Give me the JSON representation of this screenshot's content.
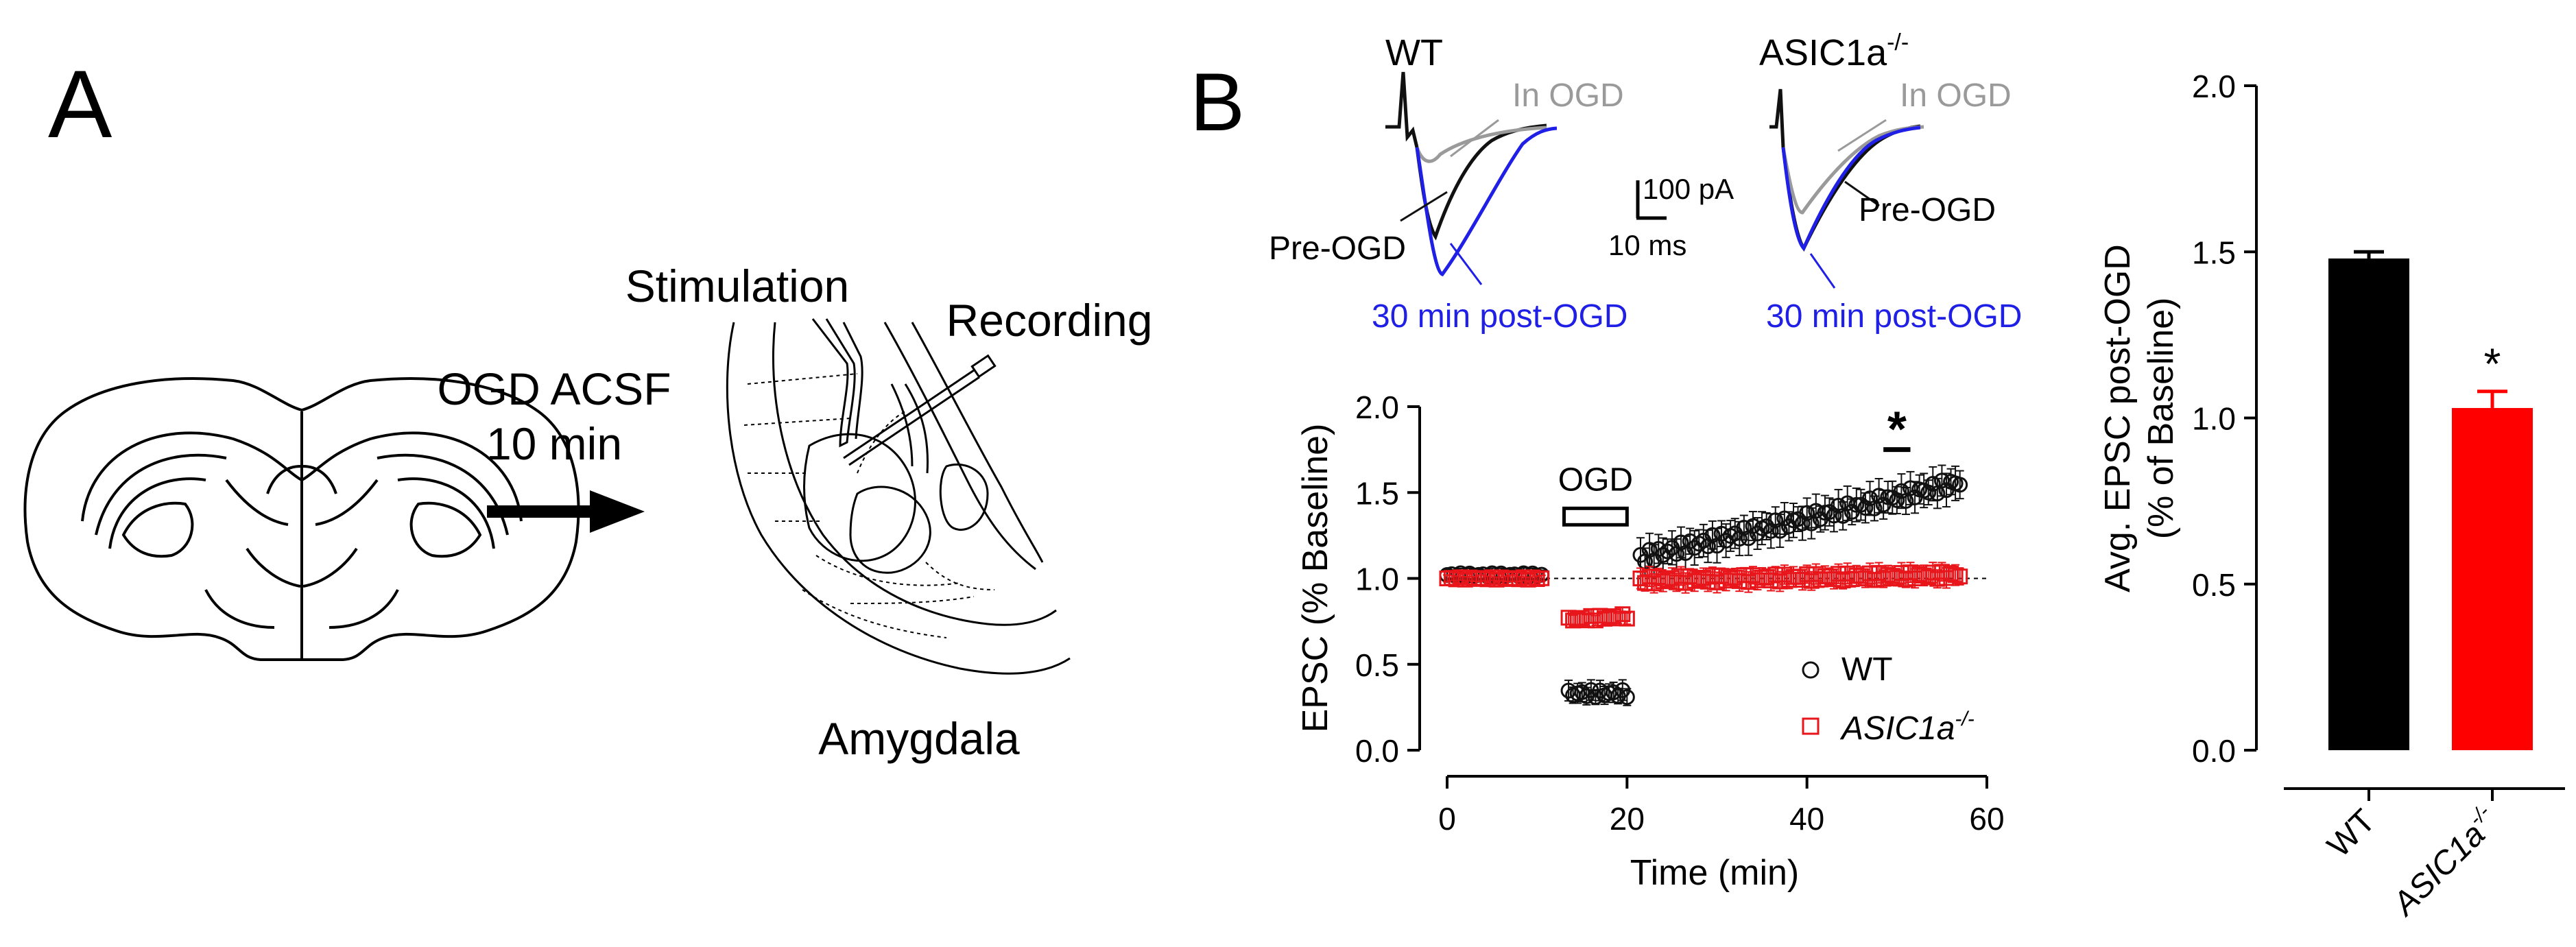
{
  "panel_a": {
    "label": "A",
    "arrow_label_line1": "OGD ACSF",
    "arrow_label_line2": "10 min",
    "stimulation_label": "Stimulation",
    "recording_label": "Recording",
    "region_label": "Amygdala"
  },
  "panel_b": {
    "label": "B",
    "traces": {
      "wt_title": "WT",
      "ko_title": "ASIC1a",
      "ko_title_sup": "-/-",
      "in_ogd_label": "In OGD",
      "pre_ogd_label": "Pre-OGD",
      "post_ogd_label": "30 min post-OGD",
      "scale_current": "100 pA",
      "scale_time": "10 ms",
      "colors": {
        "pre": "#111111",
        "in": "#9a9a9a",
        "post": "#1f1fe6"
      }
    },
    "timecourse": {
      "ylabel": "EPSC (% Baseline)",
      "xlabel": "Time (min)",
      "ogd_label": "OGD",
      "sig_marker": "*",
      "legend_wt": "WT",
      "legend_ko": "ASIC1a",
      "legend_ko_sup": "-/-",
      "colors": {
        "wt": "#111111",
        "ko": "#e8161b"
      }
    },
    "bar": {
      "ylabel_line1": "Avg. EPSC post-OGD",
      "ylabel_line2": "(% of Baseline)",
      "sig_marker": "*",
      "ko_sup": "-/-",
      "colors": {
        "wt": "#000000",
        "ko": "#ff0000"
      }
    }
  },
  "chart_data": [
    {
      "type": "scatter",
      "title": "",
      "xlabel": "Time (min)",
      "ylabel": "EPSC (% Baseline)",
      "xlim": [
        0,
        60
      ],
      "ylim": [
        0,
        2.0
      ],
      "xticks": [
        0,
        20,
        40,
        60
      ],
      "yticks": [
        0.0,
        0.5,
        1.0,
        1.5,
        2.0
      ],
      "baseline_reference": 1.0,
      "ogd_period": [
        13,
        20
      ],
      "significance_window": [
        48.5,
        51.5
      ],
      "series": [
        {
          "name": "WT",
          "marker": "open-circle",
          "segments": [
            {
              "x_start": 0,
              "x_end": 10.5,
              "y_start": 1.02,
              "y_end": 1.02,
              "error": 0.03
            },
            {
              "x_start": 13.5,
              "x_end": 20,
              "y_start": 0.33,
              "y_end": 0.33,
              "error": 0.06
            },
            {
              "x_start": 21.5,
              "x_end": 57,
              "y_start": 1.12,
              "y_end": 1.56,
              "error": 0.1
            }
          ]
        },
        {
          "name": "ASIC1a-/-",
          "marker": "open-square",
          "segments": [
            {
              "x_start": 0,
              "x_end": 10.5,
              "y_start": 1.0,
              "y_end": 1.0,
              "error": 0.02
            },
            {
              "x_start": 13.5,
              "x_end": 20,
              "y_start": 0.76,
              "y_end": 0.78,
              "error": 0.04
            },
            {
              "x_start": 21.5,
              "x_end": 57,
              "y_start": 0.99,
              "y_end": 1.02,
              "error": 0.06
            }
          ]
        }
      ]
    },
    {
      "type": "bar",
      "title": "",
      "xlabel": "",
      "ylabel": "Avg. EPSC post-OGD (% of Baseline)",
      "ylim": [
        0,
        2.0
      ],
      "yticks": [
        0.0,
        0.5,
        1.0,
        1.5,
        2.0
      ],
      "categories": [
        "WT",
        "ASIC1a"
      ],
      "values": [
        1.48,
        1.03
      ],
      "errors": [
        0.02,
        0.05
      ],
      "significant": [
        false,
        true
      ]
    }
  ]
}
